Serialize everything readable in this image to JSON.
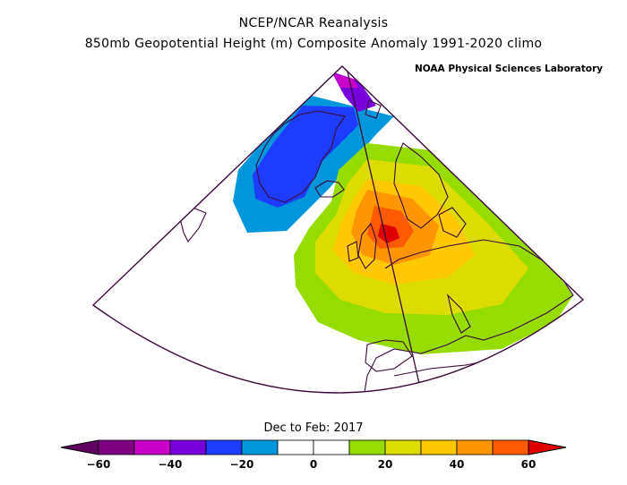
{
  "header": {
    "title": "NCEP/NCAR Reanalysis",
    "subtitle": "850mb Geopotential Height (m) Composite Anomaly 1991-2020 climo",
    "credit": "NOAA Physical Sciences Laboratory"
  },
  "map": {
    "period": "Dec to Feb: 2017",
    "variable": "850mb geopotential height anomaly",
    "units": "m",
    "features": [
      "Greenland negative anomaly",
      "Europe positive anomaly centered over the North Sea"
    ]
  },
  "colorbar": {
    "levels": [
      -60,
      -50,
      -40,
      -30,
      -20,
      -10,
      0,
      10,
      20,
      30,
      40,
      50,
      60
    ],
    "colors": [
      "#800080",
      "#c800c8",
      "#7800dc",
      "#1e3cff",
      "#0096dc",
      "#ffffff",
      "#ffffff",
      "#96dc00",
      "#dcdc00",
      "#ffc800",
      "#ff9600",
      "#ff5a00"
    ],
    "low_color": "#600060",
    "high_color": "#e00000",
    "labels": [
      "-60",
      "-40",
      "-20",
      "0",
      "20",
      "40",
      "60"
    ]
  }
}
